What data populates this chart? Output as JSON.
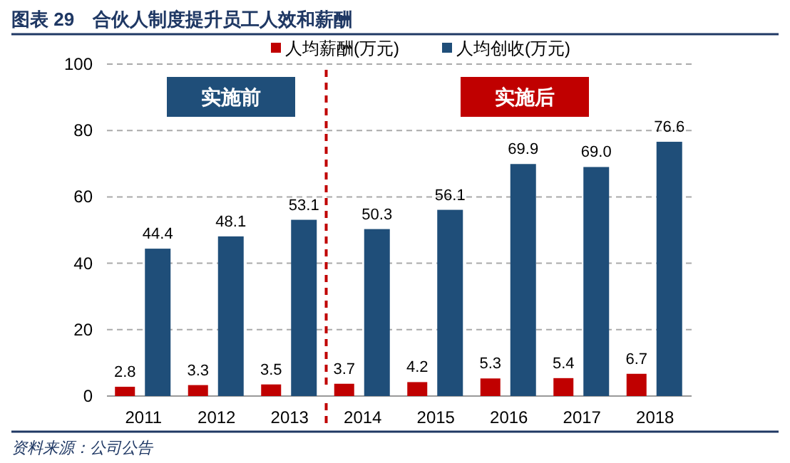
{
  "chart_data": {
    "type": "bar",
    "title": "图表 29　合伙人制度提升员工人效和薪酬",
    "categories": [
      "2011",
      "2012",
      "2013",
      "2014",
      "2015",
      "2016",
      "2017",
      "2018"
    ],
    "series": [
      {
        "name": "人均薪酬(万元)",
        "color": "#c00000",
        "values": [
          2.8,
          3.3,
          3.5,
          3.7,
          4.2,
          5.3,
          5.4,
          6.7
        ],
        "value_labels": [
          "2.8",
          "3.3",
          "3.5",
          "3.7",
          "4.2",
          "5.3",
          "5.4",
          "6.7"
        ]
      },
      {
        "name": "人均创收(万元)",
        "color": "#1f4e79",
        "values": [
          44.4,
          48.1,
          53.1,
          50.3,
          56.1,
          69.9,
          69.0,
          76.6
        ],
        "value_labels": [
          "44.4",
          "48.1",
          "53.1",
          "50.3",
          "56.1",
          "69.9",
          "69.0",
          "76.6"
        ]
      }
    ],
    "ylim": [
      0,
      100
    ],
    "yticks": [
      0,
      20,
      40,
      60,
      80,
      100
    ],
    "grid": "y",
    "legend": "top",
    "annotations": [
      "实施前",
      "实施后",
      "资料来源：公司公告"
    ]
  }
}
